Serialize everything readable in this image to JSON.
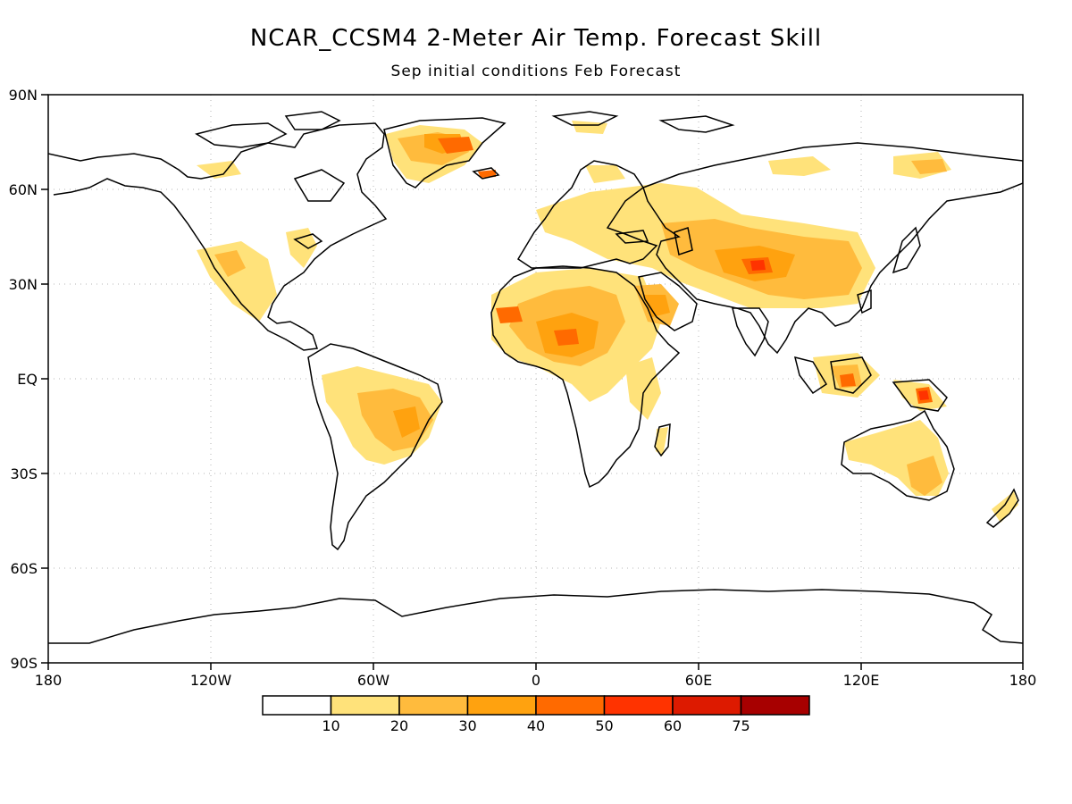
{
  "title": "NCAR_CCSM4 2-Meter Air Temp. Forecast Skill",
  "subtitle": "Sep initial conditions  Feb Forecast",
  "lat_labels": [
    "90N",
    "60N",
    "30N",
    "EQ",
    "30S",
    "60S",
    "90S"
  ],
  "lon_labels": [
    "180",
    "120W",
    "60W",
    "0",
    "60E",
    "120E",
    "180"
  ],
  "colorbar": {
    "labels": [
      "10",
      "20",
      "30",
      "40",
      "50",
      "60",
      "75"
    ],
    "colors": [
      "#ffffff",
      "#ffe27a",
      "#ffbb3d",
      "#ffa20f",
      "#ff6a00",
      "#ff3300",
      "#dd1a00",
      "#a70000"
    ]
  },
  "colors": {
    "land_outline": "#000000",
    "gridline": "#b5b5b5"
  }
}
